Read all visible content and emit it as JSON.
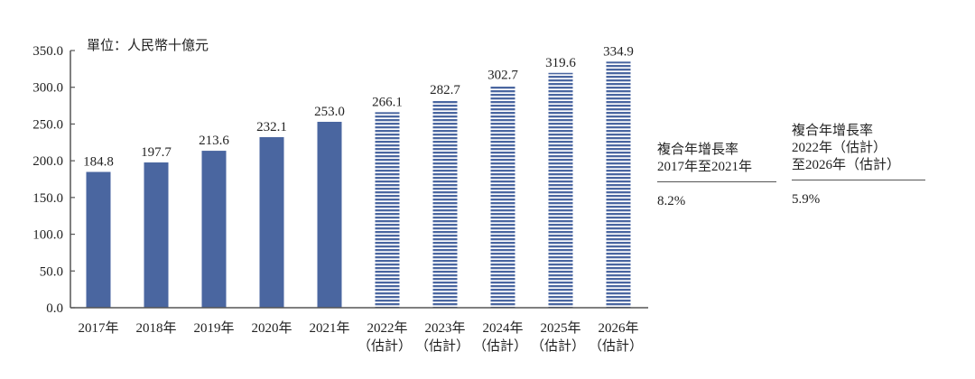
{
  "chart_data": {
    "type": "bar",
    "title": "",
    "unit_label": "單位：人民幣十億元",
    "xlabel": "",
    "ylabel": "",
    "ylim": [
      0,
      350
    ],
    "yticks": [
      "0.0",
      "50.0",
      "100.0",
      "150.0",
      "200.0",
      "250.0",
      "300.0",
      "350.0"
    ],
    "grid": false,
    "categories": [
      {
        "year": "2017年",
        "sub": ""
      },
      {
        "year": "2018年",
        "sub": ""
      },
      {
        "year": "2019年",
        "sub": ""
      },
      {
        "year": "2020年",
        "sub": ""
      },
      {
        "year": "2021年",
        "sub": ""
      },
      {
        "year": "2022年",
        "sub": "（估計）"
      },
      {
        "year": "2023年",
        "sub": "（估計）"
      },
      {
        "year": "2024年",
        "sub": "（估計）"
      },
      {
        "year": "2025年",
        "sub": "（估計）"
      },
      {
        "year": "2026年",
        "sub": "（估計）"
      }
    ],
    "values": [
      184.8,
      197.7,
      213.6,
      232.1,
      253.0,
      266.1,
      282.7,
      302.7,
      319.6,
      334.9
    ],
    "value_labels": [
      "184.8",
      "197.7",
      "213.6",
      "232.1",
      "253.0",
      "266.1",
      "282.7",
      "302.7",
      "319.6",
      "334.9"
    ],
    "estimated": [
      false,
      false,
      false,
      false,
      false,
      true,
      true,
      true,
      true,
      true
    ],
    "colors": {
      "actual": "#4a66a0",
      "estimated_stripe": "#4a66a0",
      "stripe_gap": "#ffffff",
      "axis": "#555555"
    }
  },
  "cagr": [
    {
      "header": "複合年增長率\n2017年至2021年",
      "value": "8.2%"
    },
    {
      "header": "複合年增長率\n2022年（估計）\n至2026年（估計）",
      "value": "5.9%"
    }
  ]
}
